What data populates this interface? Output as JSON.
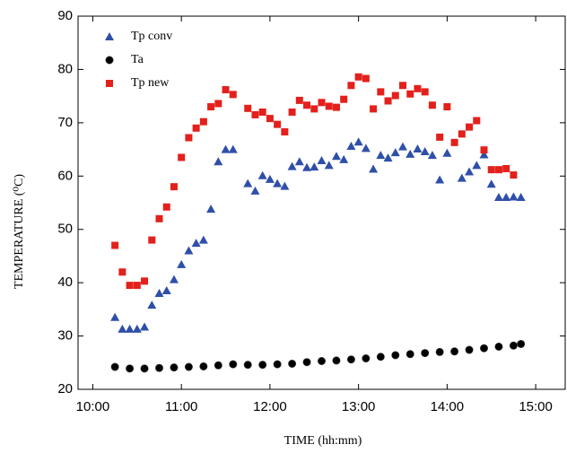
{
  "chart_data": {
    "type": "scatter",
    "x_label": "TIME (hh:mm)",
    "y_label": "TEMPERATURE (⁰C)",
    "x": [
      "10:15",
      "10:20",
      "10:25",
      "10:30",
      "10:35",
      "10:40",
      "10:45",
      "10:50",
      "10:55",
      "11:00",
      "11:05",
      "11:10",
      "11:15",
      "11:20",
      "11:25",
      "11:30",
      "11:35",
      "11:40",
      "11:45",
      "11:50",
      "11:55",
      "12:00",
      "12:05",
      "12:10",
      "12:15",
      "12:20",
      "12:25",
      "12:30",
      "12:35",
      "12:40",
      "12:45",
      "12:50",
      "12:55",
      "13:00",
      "13:05",
      "13:10",
      "13:15",
      "13:20",
      "13:25",
      "13:30",
      "13:35",
      "13:40",
      "13:45",
      "13:50",
      "13:55",
      "14:00",
      "14:05",
      "14:10",
      "14:15",
      "14:20",
      "14:25",
      "14:30",
      "14:35",
      "14:40",
      "14:45",
      "14:50"
    ],
    "series": [
      {
        "name": "Tp conv",
        "color": "#2f4fa8",
        "marker": "triangle",
        "values": [
          33.5,
          31.3,
          31.3,
          31.3,
          31.7,
          35.8,
          38,
          38.5,
          40.6,
          43.4,
          46,
          47.4,
          48,
          53.8,
          62.7,
          65,
          65,
          null,
          58.6,
          57.2,
          60.1,
          59.4,
          58.6,
          58.1,
          61.8,
          62.7,
          61.6,
          61.7,
          62.9,
          62,
          63.7,
          63.1,
          65.6,
          66.4,
          65.2,
          61.3,
          63.9,
          63.4,
          64.4,
          65.5,
          64.1,
          65.1,
          64.6,
          63.9,
          59.3,
          64.3,
          null,
          59.6,
          60.8,
          62,
          64,
          58.5,
          56,
          56,
          56.1,
          56
        ]
      },
      {
        "name": "Ta",
        "color": "#000000",
        "marker": "circle",
        "values": [
          24.2,
          null,
          23.9,
          null,
          23.9,
          null,
          24,
          null,
          24.1,
          null,
          24.2,
          null,
          24.3,
          null,
          24.5,
          null,
          24.7,
          null,
          24.6,
          null,
          24.6,
          null,
          24.7,
          null,
          24.8,
          null,
          25.1,
          null,
          25.3,
          null,
          25.4,
          null,
          25.6,
          null,
          25.8,
          null,
          26.1,
          null,
          26.4,
          null,
          26.6,
          null,
          26.8,
          null,
          27,
          null,
          27.1,
          null,
          27.4,
          null,
          27.7,
          null,
          28,
          null,
          28.2,
          28.5
        ]
      },
      {
        "name": "Tp new",
        "color": "#e3201b",
        "marker": "square",
        "values": [
          47,
          42,
          39.5,
          39.5,
          40.3,
          48,
          52,
          54.2,
          58,
          63.5,
          67.2,
          69,
          70.2,
          73,
          73.6,
          76.2,
          75.3,
          null,
          72.7,
          71.5,
          72,
          70.8,
          69.7,
          68.3,
          72,
          74.2,
          73.3,
          72.6,
          73.8,
          73.1,
          72.9,
          74.4,
          77,
          78.6,
          78.3,
          72.6,
          75.8,
          74.1,
          75.1,
          77,
          75.4,
          76.4,
          75.8,
          73.3,
          67.3,
          73,
          66.3,
          67.9,
          69.2,
          70.4,
          64.9,
          61.2,
          61.2,
          61.4,
          60.2,
          null
        ]
      }
    ],
    "xlim": [
      "9:50",
      "15:20"
    ],
    "xticks": [
      "10:00",
      "11:00",
      "12:00",
      "13:00",
      "14:00",
      "15:00"
    ],
    "ylim": [
      20,
      90
    ],
    "yticks": [
      20,
      30,
      40,
      50,
      60,
      70,
      80,
      90
    ],
    "legend": "upper-left",
    "grid": false
  }
}
